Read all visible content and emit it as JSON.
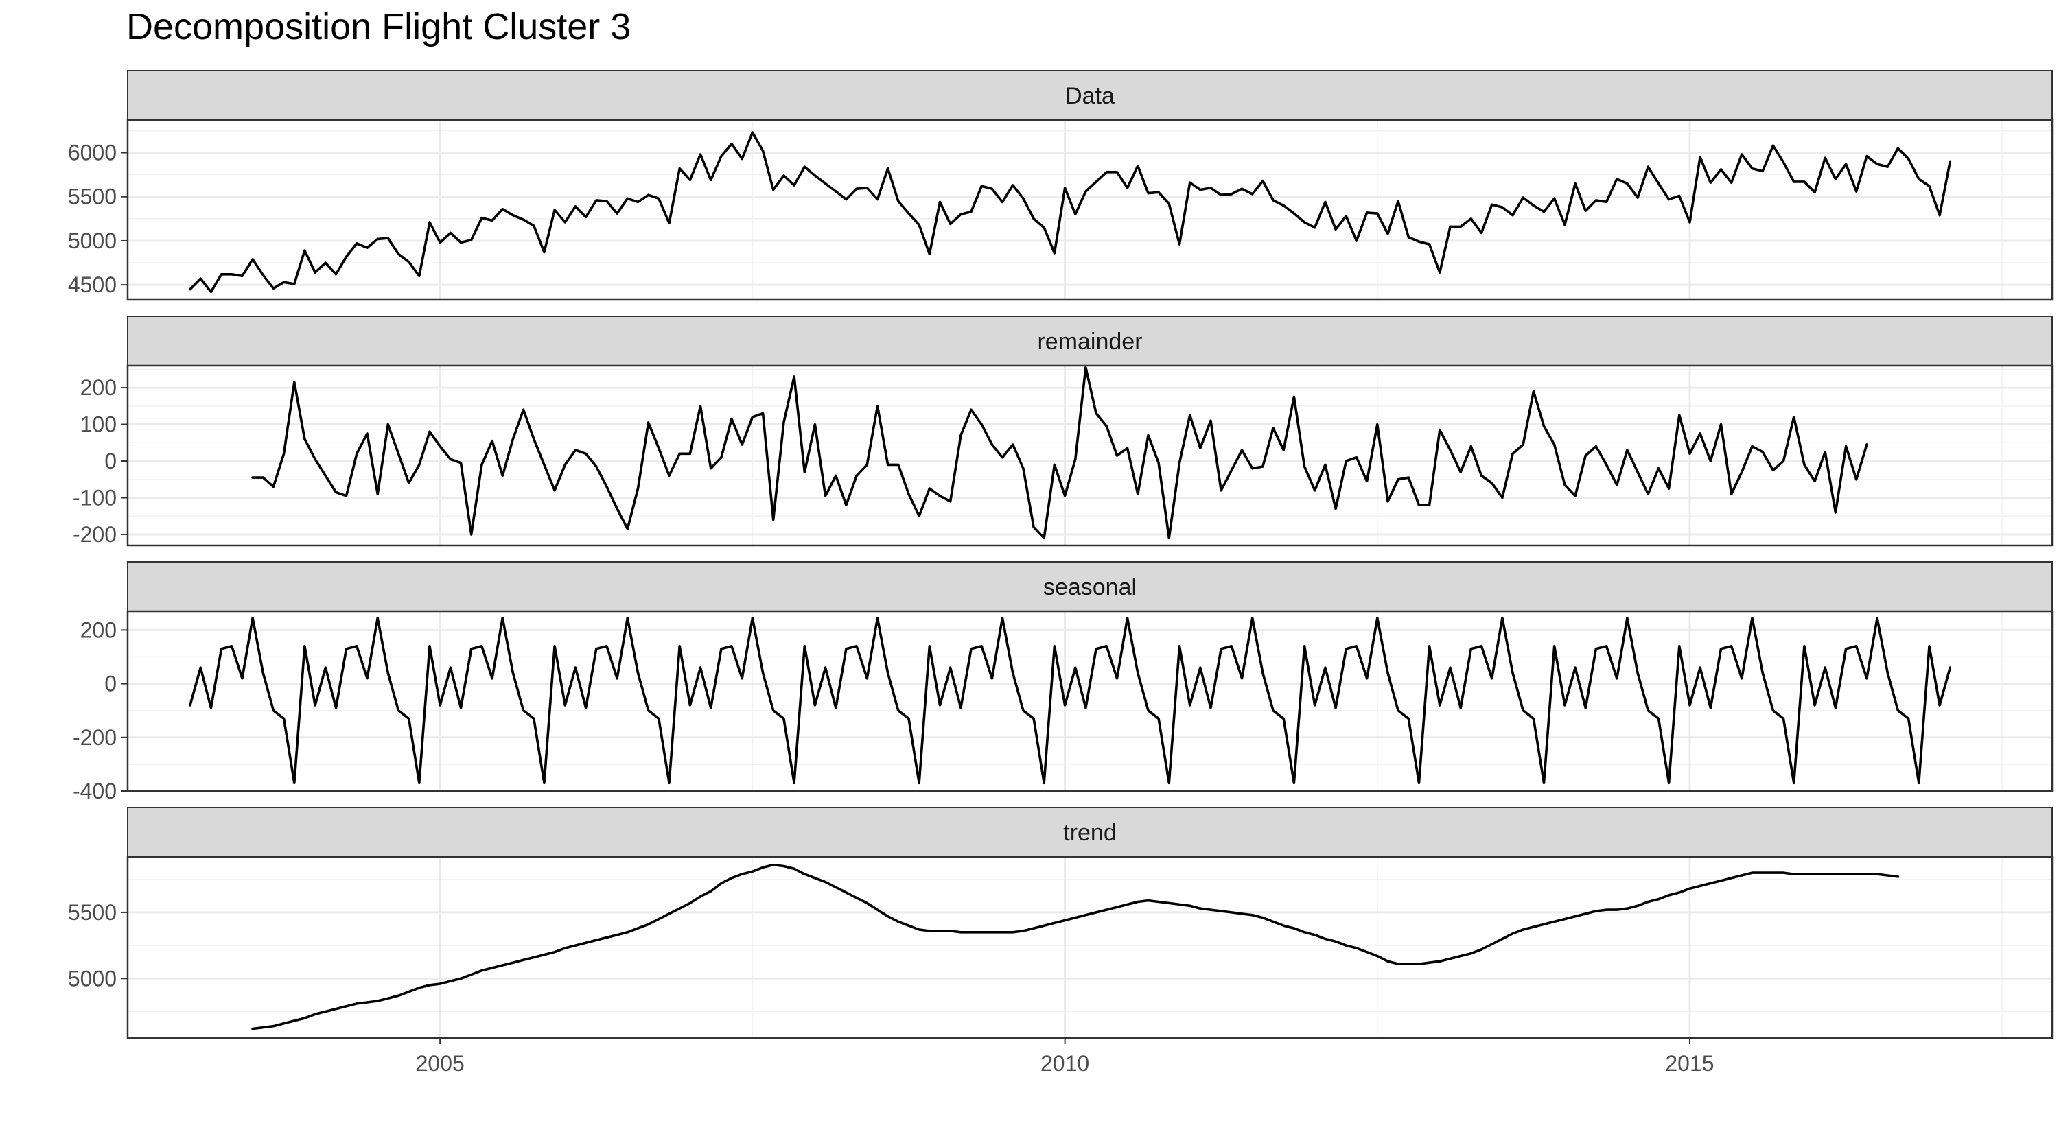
{
  "chart_data": {
    "type": "line",
    "title": "Decomposition Flight Cluster 3",
    "xlabel": "",
    "ylabel": "",
    "x_start": 2003.0,
    "x_step": 0.08333333,
    "xlim": [
      2002.5,
      2017.9
    ],
    "x_ticks": [
      2005,
      2010,
      2015
    ],
    "grid": true,
    "panels": [
      {
        "name": "Data",
        "ylim": [
          4330,
          6370
        ],
        "y_ticks": [
          4500,
          5000,
          5500,
          6000
        ],
        "start": 2003.0,
        "values": [
          4450,
          4570,
          4420,
          4620,
          4620,
          4600,
          4790,
          4610,
          4460,
          4530,
          4510,
          4890,
          4640,
          4750,
          4620,
          4820,
          4970,
          4920,
          5020,
          5030,
          4850,
          4760,
          4600,
          5210,
          4980,
          5090,
          4980,
          5010,
          5260,
          5230,
          5360,
          5290,
          5240,
          5170,
          4870,
          5350,
          5210,
          5390,
          5270,
          5460,
          5450,
          5310,
          5480,
          5440,
          5520,
          5480,
          5200,
          5820,
          5690,
          5980,
          5690,
          5960,
          6100,
          5930,
          6230,
          6020,
          5580,
          5740,
          5630,
          5840,
          5740,
          5650,
          5560,
          5470,
          5590,
          5600,
          5470,
          5820,
          5450,
          5310,
          5180,
          4850,
          5440,
          5190,
          5300,
          5330,
          5620,
          5590,
          5440,
          5630,
          5480,
          5250,
          5150,
          4860,
          5600,
          5300,
          5560,
          5670,
          5780,
          5780,
          5600,
          5850,
          5540,
          5550,
          5420,
          4960,
          5660,
          5580,
          5600,
          5520,
          5530,
          5590,
          5530,
          5680,
          5460,
          5400,
          5310,
          5210,
          5150,
          5440,
          5130,
          5280,
          5000,
          5320,
          5310,
          5080,
          5450,
          5040,
          4990,
          4960,
          4640,
          5160,
          5160,
          5250,
          5090,
          5410,
          5380,
          5290,
          5490,
          5400,
          5330,
          5480,
          5180,
          5650,
          5340,
          5460,
          5440,
          5700,
          5650,
          5490,
          5840,
          5650,
          5470,
          5510,
          5210,
          5950,
          5660,
          5810,
          5660,
          5980,
          5820,
          5790,
          6080,
          5890,
          5670,
          5670,
          5550,
          5940,
          5700,
          5870,
          5560,
          5960,
          5870,
          5840,
          6050,
          5930,
          5700,
          5620,
          5290,
          5900
        ]
      },
      {
        "name": "remainder",
        "ylim": [
          -230,
          260
        ],
        "y_ticks": [
          -200,
          -100,
          0,
          100,
          200
        ],
        "start": 2003.5,
        "values": [
          -45,
          -45,
          -70,
          20,
          215,
          60,
          5,
          -40,
          -85,
          -95,
          20,
          75,
          -90,
          100,
          20,
          -60,
          -10,
          80,
          40,
          5,
          -5,
          -200,
          -10,
          55,
          -40,
          60,
          140,
          60,
          -10,
          -80,
          -10,
          30,
          20,
          -15,
          -70,
          -130,
          -185,
          -75,
          105,
          35,
          -40,
          20,
          20,
          150,
          -20,
          10,
          115,
          45,
          120,
          130,
          -160,
          105,
          230,
          -30,
          100,
          -95,
          -40,
          -120,
          -40,
          -10,
          150,
          -10,
          -10,
          -90,
          -150,
          -75,
          -95,
          -110,
          70,
          140,
          100,
          45,
          10,
          45,
          -20,
          -180,
          -210,
          -10,
          -95,
          5,
          255,
          130,
          95,
          15,
          35,
          -90,
          70,
          -5,
          -210,
          -5,
          125,
          35,
          110,
          -80,
          -25,
          30,
          -20,
          -15,
          90,
          30,
          175,
          -15,
          -80,
          -10,
          -130,
          0,
          10,
          -55,
          100,
          -110,
          -50,
          -45,
          -120,
          -120,
          85,
          30,
          -30,
          40,
          -40,
          -60,
          -100,
          20,
          45,
          190,
          95,
          45,
          -65,
          -95,
          15,
          40,
          -10,
          -65,
          30,
          -30,
          -90,
          -20,
          -75,
          125,
          20,
          75,
          0,
          100,
          -90,
          -30,
          40,
          25,
          -25,
          0,
          120,
          -10,
          -55,
          25,
          -140,
          40,
          -50,
          45
        ]
      },
      {
        "name": "seasonal",
        "ylim": [
          -400,
          270
        ],
        "y_ticks": [
          -400,
          -200,
          0,
          200
        ],
        "start": 2003.0,
        "values": [
          -80,
          60,
          -90,
          130,
          140,
          20,
          245,
          40,
          -100,
          -130,
          -370,
          140,
          -80,
          60,
          -90,
          130,
          140,
          20,
          245,
          40,
          -100,
          -130,
          -370,
          140,
          -80,
          60,
          -90,
          130,
          140,
          20,
          245,
          40,
          -100,
          -130,
          -370,
          140,
          -80,
          60,
          -90,
          130,
          140,
          20,
          245,
          40,
          -100,
          -130,
          -370,
          140,
          -80,
          60,
          -90,
          130,
          140,
          20,
          245,
          40,
          -100,
          -130,
          -370,
          140,
          -80,
          60,
          -90,
          130,
          140,
          20,
          245,
          40,
          -100,
          -130,
          -370,
          140,
          -80,
          60,
          -90,
          130,
          140,
          20,
          245,
          40,
          -100,
          -130,
          -370,
          140,
          -80,
          60,
          -90,
          130,
          140,
          20,
          245,
          40,
          -100,
          -130,
          -370,
          140,
          -80,
          60,
          -90,
          130,
          140,
          20,
          245,
          40,
          -100,
          -130,
          -370,
          140,
          -80,
          60,
          -90,
          130,
          140,
          20,
          245,
          40,
          -100,
          -130,
          -370,
          140,
          -80,
          60,
          -90,
          130,
          140,
          20,
          245,
          40,
          -100,
          -130,
          -370,
          140,
          -80,
          60,
          -90,
          130,
          140,
          20,
          245,
          40,
          -100,
          -130,
          -370,
          140,
          -80,
          60,
          -90,
          130,
          140,
          20,
          245,
          40,
          -100,
          -130,
          -370,
          140,
          -80,
          60,
          -90,
          130,
          140,
          20,
          245,
          40,
          -100,
          -130,
          -370,
          140,
          -80,
          60
        ]
      },
      {
        "name": "trend",
        "ylim": [
          4550,
          5920
        ],
        "y_ticks": [
          5000,
          5500
        ],
        "start": 2003.5,
        "values": [
          4620,
          4630,
          4640,
          4660,
          4680,
          4700,
          4730,
          4750,
          4770,
          4790,
          4810,
          4820,
          4830,
          4850,
          4870,
          4900,
          4930,
          4950,
          4960,
          4980,
          5000,
          5030,
          5060,
          5080,
          5100,
          5120,
          5140,
          5160,
          5180,
          5200,
          5230,
          5250,
          5270,
          5290,
          5310,
          5330,
          5350,
          5380,
          5410,
          5450,
          5490,
          5530,
          5570,
          5620,
          5660,
          5720,
          5760,
          5790,
          5810,
          5840,
          5860,
          5850,
          5830,
          5790,
          5760,
          5730,
          5690,
          5650,
          5610,
          5570,
          5520,
          5470,
          5430,
          5400,
          5370,
          5360,
          5360,
          5360,
          5350,
          5350,
          5350,
          5350,
          5350,
          5350,
          5360,
          5380,
          5400,
          5420,
          5440,
          5460,
          5480,
          5500,
          5520,
          5540,
          5560,
          5580,
          5590,
          5580,
          5570,
          5560,
          5550,
          5530,
          5520,
          5510,
          5500,
          5490,
          5480,
          5460,
          5430,
          5400,
          5380,
          5350,
          5330,
          5300,
          5280,
          5250,
          5230,
          5200,
          5170,
          5130,
          5110,
          5110,
          5110,
          5120,
          5130,
          5150,
          5170,
          5190,
          5220,
          5260,
          5300,
          5340,
          5370,
          5390,
          5410,
          5430,
          5450,
          5470,
          5490,
          5510,
          5520,
          5520,
          5530,
          5550,
          5580,
          5600,
          5630,
          5650,
          5680,
          5700,
          5720,
          5740,
          5760,
          5780,
          5800,
          5800,
          5800,
          5800,
          5790,
          5790,
          5790,
          5790,
          5790,
          5790,
          5790,
          5790,
          5790,
          5780,
          5770
        ]
      }
    ]
  }
}
